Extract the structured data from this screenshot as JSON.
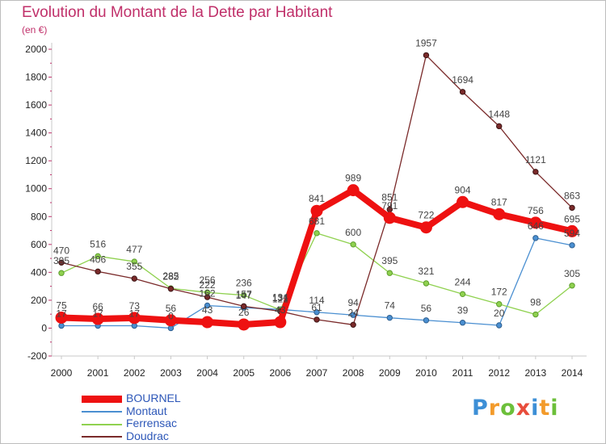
{
  "title": "Evolution du Montant de la Dette par Habitant",
  "subtitle": "(en €)",
  "logo": {
    "letters": [
      "P",
      "r",
      "o",
      "x",
      "i",
      "t",
      "i"
    ],
    "colors": [
      "#3d8fd6",
      "#f39b2b",
      "#6cbf3a",
      "#e84d3c",
      "#3d8fd6",
      "#f39b2b",
      "#6cbf3a"
    ]
  },
  "chart_data": {
    "type": "line",
    "title": "Evolution du Montant de la Dette par Habitant",
    "ylabel": "(en €)",
    "xlabel": "",
    "x": [
      "2000",
      "2001",
      "2002",
      "2003",
      "2004",
      "2005",
      "2006",
      "2007",
      "2008",
      "2009",
      "2010",
      "2011",
      "2012",
      "2013",
      "2014"
    ],
    "ylim": [
      -200,
      2000
    ],
    "yticks": [
      "-200",
      "0",
      "200",
      "400",
      "600",
      "800",
      "1000",
      "1200",
      "1400",
      "1600",
      "1800",
      "2000"
    ],
    "grid": false,
    "legend_position": "bottom-left",
    "series": [
      {
        "name": "BOURNEL",
        "color": "#ee1111",
        "values": [
          75,
          66,
          73,
          56,
          43,
          26,
          43,
          841,
          989,
          791,
          722,
          904,
          817,
          756,
          695
        ],
        "labels": [
          "75",
          "66",
          "73",
          "56",
          "43",
          "26",
          "43",
          "841",
          "989",
          "791",
          "722",
          "904",
          "817",
          "756",
          "695"
        ]
      },
      {
        "name": "Montaut",
        "color": "#4a8fd1",
        "values": [
          17,
          17,
          17,
          0,
          162,
          147,
          134,
          114,
          94,
          74,
          56,
          39,
          20,
          646,
          594
        ],
        "labels": [
          "17",
          "17",
          "17",
          "0",
          "162",
          "147",
          "134",
          "114",
          "94",
          "74",
          "56",
          "39",
          "20",
          "646",
          "594"
        ]
      },
      {
        "name": "Ferrensac",
        "color": "#8fd14f",
        "values": [
          395,
          516,
          477,
          285,
          256,
          236,
          131,
          681,
          600,
          395,
          321,
          244,
          172,
          98,
          305
        ],
        "labels": [
          "395",
          "516",
          "477",
          "285",
          "256",
          "236",
          "131",
          "681",
          "600",
          "395",
          "321",
          "244",
          "172",
          "98",
          "305"
        ]
      },
      {
        "name": "Doudrac",
        "color": "#7a2a2a",
        "values": [
          470,
          406,
          355,
          282,
          222,
          157,
          121,
          61,
          24,
          851,
          1957,
          1694,
          1448,
          1121,
          863
        ],
        "labels": [
          "470",
          "406",
          "355",
          "282",
          "222",
          "157",
          "121",
          "61",
          "24",
          "851",
          "1957",
          "1694",
          "1448",
          "1121",
          "863"
        ]
      }
    ]
  }
}
